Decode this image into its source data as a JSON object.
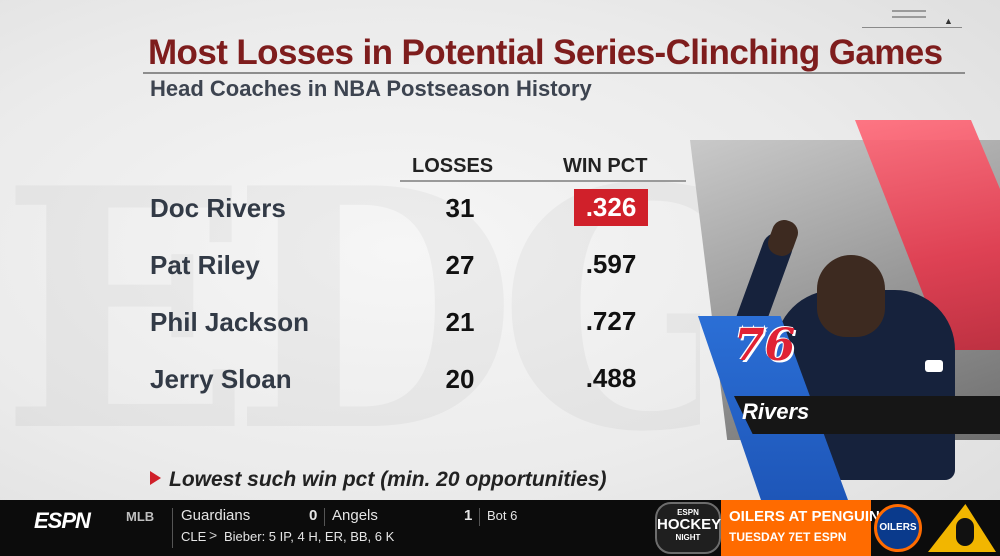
{
  "graphic": {
    "title": "Most Losses in Potential Series-Clinching Games",
    "subtitle": "Head Coaches in NBA Postseason History",
    "columns": {
      "losses": "LOSSES",
      "win_pct": "WIN PCT"
    },
    "rows": [
      {
        "name": "Doc Rivers",
        "losses": "31",
        "win_pct": ".326",
        "highlight": true
      },
      {
        "name": "Pat Riley",
        "losses": "27",
        "win_pct": ".597",
        "highlight": false
      },
      {
        "name": "Phil Jackson",
        "losses": "21",
        "win_pct": ".727",
        "highlight": false
      },
      {
        "name": "Jerry Sloan",
        "losses": "20",
        "win_pct": ".488",
        "highlight": false
      }
    ],
    "footnote": "Lowest such win pct (min. 20 opportunities)",
    "highlight_color": "#d0202a",
    "title_color": "#7e1d1d"
  },
  "player_panel": {
    "team_logo_text": "76",
    "name": "Rivers",
    "team_colors": {
      "red": "#e02235",
      "blue": "#1e56b8"
    }
  },
  "ticker": {
    "network": "ESPN",
    "sport": "MLB",
    "away_team": "Guardians",
    "away_score": "0",
    "home_team": "Angels",
    "home_score": "1",
    "inning": "Bot 6",
    "team_abbrev": "CLE",
    "pitcher_line": "Bieber: 5 IP, 4 H, ER, BB, 6 K",
    "hockey_badge": {
      "top": "ESPN",
      "mid": "HOCKEY",
      "bot": "NIGHT"
    },
    "promo": {
      "title": "OILERS AT PENGUINS",
      "subtitle": "TUESDAY 7ET ESPN"
    },
    "logos": {
      "oilers": "OILERS"
    }
  }
}
